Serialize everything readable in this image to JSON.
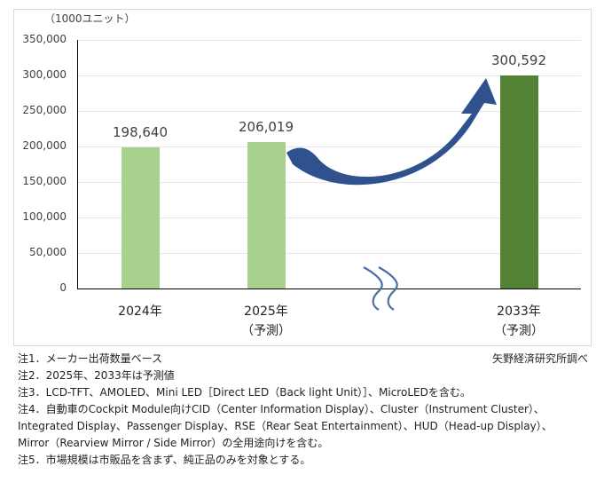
{
  "chart_data": {
    "type": "bar",
    "title": "",
    "unit_label": "（1000ユニット）",
    "xlabel": "",
    "ylabel": "（1000ユニット）",
    "ylim": [
      0,
      350000
    ],
    "yticks": [
      "350,000",
      "300,000",
      "250,000",
      "200,000",
      "150,000",
      "100,000",
      "50,000",
      "0"
    ],
    "grid": true,
    "categories": [
      "2024年",
      "2025年（予測）",
      "2033年（予測）"
    ],
    "category_lines": [
      {
        "line1": "2024年",
        "line2": ""
      },
      {
        "line1": "2025年",
        "line2": "（予測）"
      },
      {
        "line1": "2033年",
        "line2": "（予測）"
      }
    ],
    "values": [
      198640,
      206019,
      300592
    ],
    "value_labels": [
      "198,640",
      "206,019",
      "300,592"
    ],
    "bar_colors": [
      "#a9d18e",
      "#a9d18e",
      "#548235"
    ],
    "annotations": [
      "axis break (wavy lines) between 2025 and 2033",
      "curved blue arrow from 2025 bar to 2033 bar"
    ],
    "arrow_color": "#2f528f",
    "legend": null
  },
  "notes": [
    "注1．メーカー出荷数量ベース",
    "注2．2025年、2033年は予測値",
    "注3．LCD-TFT、AMOLED、Mini LED［Direct LED（Back light Unit）］、MicroLEDを含む。",
    "注4．自動車のCockpit Module向けCID（Center Information Display）、Cluster（Instrument Cluster）、",
    "Integrated Display、Passenger Display、RSE（Rear Seat Entertainment）、HUD（Head-up Display）、",
    "Mirror（Rearview Mirror / Side Mirror）の全用途向けを含む。",
    "注5．市場規模は市販品を含まず、純正品のみを対象とする。"
  ],
  "source": "矢野経済研究所調べ"
}
